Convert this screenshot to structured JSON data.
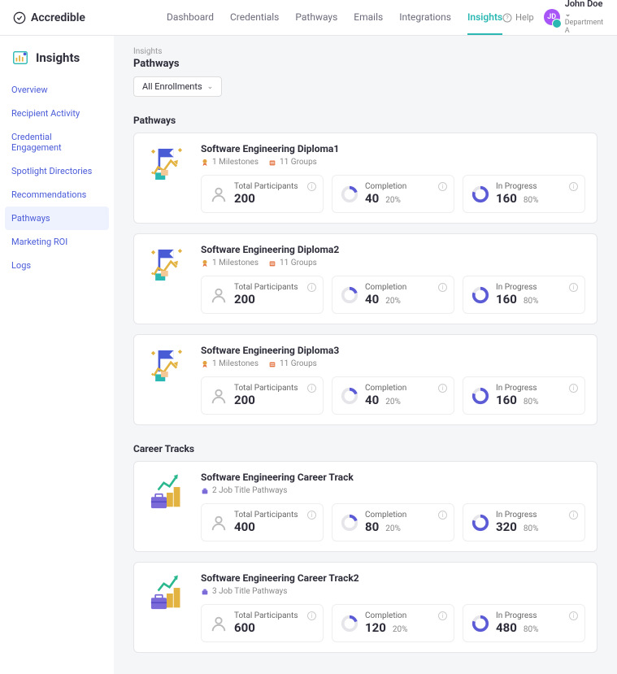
{
  "brand": "Accredible",
  "topnav": [
    {
      "label": "Dashboard",
      "active": false
    },
    {
      "label": "Credentials",
      "active": false
    },
    {
      "label": "Pathways",
      "active": false
    },
    {
      "label": "Emails",
      "active": false
    },
    {
      "label": "Integrations",
      "active": false
    },
    {
      "label": "Insights",
      "active": true
    }
  ],
  "help_label": "Help",
  "user": {
    "initials": "JD",
    "name": "John Doe",
    "dept": "Department A"
  },
  "sidebar": {
    "title": "Insights",
    "items": [
      {
        "label": "Overview",
        "active": false
      },
      {
        "label": "Recipient Activity",
        "active": false
      },
      {
        "label": "Credential Engagement",
        "active": false
      },
      {
        "label": "Spotlight Directories",
        "active": false
      },
      {
        "label": "Recommendations",
        "active": false
      },
      {
        "label": "Pathways",
        "active": true
      },
      {
        "label": "Marketing ROI",
        "active": false
      },
      {
        "label": "Logs",
        "active": false
      }
    ]
  },
  "breadcrumb": "Insights",
  "page_title": "Pathways",
  "filter_label": "All Enrollments",
  "sections": [
    {
      "title": "Pathways",
      "type": "pathway",
      "cards": [
        {
          "title": "Software Engineering Diploma1",
          "meta": [
            {
              "icon": "milestone",
              "text": "1 Milestones"
            },
            {
              "icon": "group",
              "text": "11 Groups"
            }
          ],
          "stats": {
            "participants": {
              "label": "Total Participants",
              "value": "200"
            },
            "completion": {
              "label": "Completion",
              "value": "40",
              "pct": "20%",
              "ring_pct": 20
            },
            "in_progress": {
              "label": "In Progress",
              "value": "160",
              "pct": "80%",
              "ring_pct": 80
            }
          }
        },
        {
          "title": "Software Engineering Diploma2",
          "meta": [
            {
              "icon": "milestone",
              "text": "1 Milestones"
            },
            {
              "icon": "group",
              "text": "11 Groups"
            }
          ],
          "stats": {
            "participants": {
              "label": "Total Participants",
              "value": "200"
            },
            "completion": {
              "label": "Completion",
              "value": "40",
              "pct": "20%",
              "ring_pct": 20
            },
            "in_progress": {
              "label": "In Progress",
              "value": "160",
              "pct": "80%",
              "ring_pct": 80
            }
          }
        },
        {
          "title": "Software Engineering Diploma3",
          "meta": [
            {
              "icon": "milestone",
              "text": "1 Milestones"
            },
            {
              "icon": "group",
              "text": "11 Groups"
            }
          ],
          "stats": {
            "participants": {
              "label": "Total Participants",
              "value": "200"
            },
            "completion": {
              "label": "Completion",
              "value": "40",
              "pct": "20%",
              "ring_pct": 20
            },
            "in_progress": {
              "label": "In Progress",
              "value": "160",
              "pct": "80%",
              "ring_pct": 80
            }
          }
        }
      ]
    },
    {
      "title": "Career Tracks",
      "type": "career",
      "cards": [
        {
          "title": "Software Engineering Career Track",
          "meta": [
            {
              "icon": "career",
              "text": "2 Job Title Pathways"
            }
          ],
          "stats": {
            "participants": {
              "label": "Total Participants",
              "value": "400"
            },
            "completion": {
              "label": "Completion",
              "value": "80",
              "pct": "20%",
              "ring_pct": 20
            },
            "in_progress": {
              "label": "In Progress",
              "value": "320",
              "pct": "80%",
              "ring_pct": 80
            }
          }
        },
        {
          "title": "Software Engineering Career Track2",
          "meta": [
            {
              "icon": "career",
              "text": "3 Job Title Pathways"
            }
          ],
          "stats": {
            "participants": {
              "label": "Total Participants",
              "value": "600"
            },
            "completion": {
              "label": "Completion",
              "value": "120",
              "pct": "20%",
              "ring_pct": 20
            },
            "in_progress": {
              "label": "In Progress",
              "value": "480",
              "pct": "80%",
              "ring_pct": 80
            }
          }
        }
      ]
    }
  ],
  "colors": {
    "accent": "#2bb8b3",
    "link": "#4a5bd8",
    "ring_bg": "#e5e5ea",
    "ring_fg": "#5b5bd6",
    "flag": "#4a5bd6",
    "gold": "#e3b341",
    "briefcase": "#7a6bd8",
    "arrow": "#2bb88e"
  }
}
